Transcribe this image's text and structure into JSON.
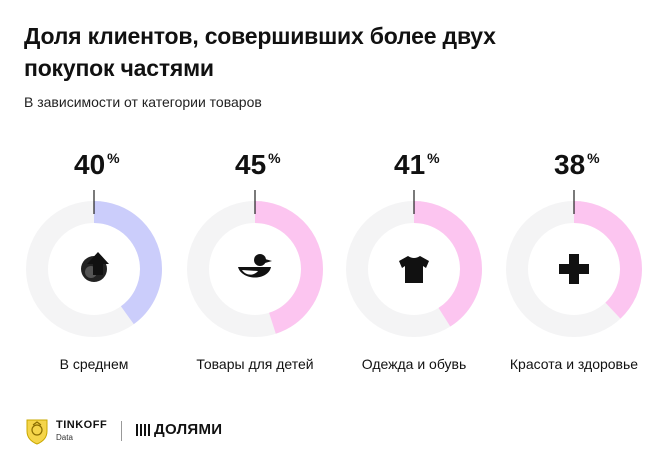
{
  "header": {
    "title": "Доля клиентов, совершивших более двух покупок частями",
    "subtitle": "В зависимости от категории товаров"
  },
  "chart_data": {
    "type": "donut",
    "title": "Доля клиентов, совершивших более двух покупок частями",
    "subtitle": "В зависимости от категории товаров",
    "categories": [
      "В среднем",
      "Товары для детей",
      "Одежда и обувь",
      "Красота и здоровье"
    ],
    "values": [
      40,
      45,
      41,
      38
    ],
    "unit": "%",
    "icons": [
      "arrow-up-icon",
      "duck-icon",
      "tshirt-icon",
      "cross-icon"
    ],
    "colors": {
      "average": "#cbcdfb",
      "category": "#fcc5f0",
      "track": "#f4f4f5"
    }
  },
  "footer": {
    "brand": "TINKOFF",
    "brand_sub": "Data",
    "partner": "ДОЛЯМИ"
  }
}
